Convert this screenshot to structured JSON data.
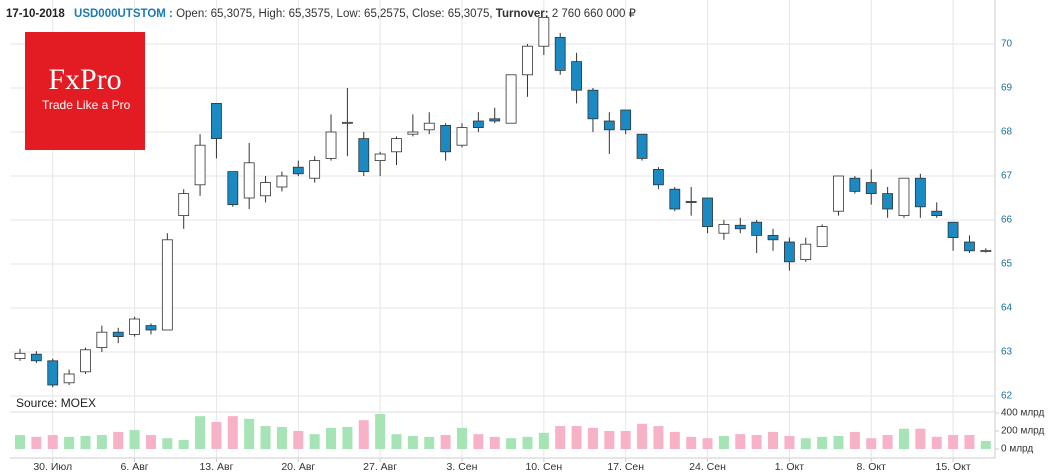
{
  "chart_data": {
    "type": "candlestick",
    "header": {
      "date": "17-10-2018",
      "ticker": "USD000UTSTOM :",
      "ohlc": "Open: 65,3075, High: 65,3575, Low: 65,2575, Close: 65,3075,",
      "turnover_label": "Turnover:",
      "turnover": "2 760 660 000 ₽"
    },
    "logo": {
      "name": "FxPro",
      "tagline": "Trade Like a Pro"
    },
    "source": "Source: MOEX",
    "categories": [
      null,
      null,
      "30. Июл",
      null,
      null,
      null,
      null,
      "6. Авг",
      null,
      null,
      null,
      null,
      "13. Авг",
      null,
      null,
      null,
      null,
      "20. Авг",
      null,
      null,
      null,
      null,
      "27. Авг",
      null,
      null,
      null,
      null,
      "3. Сен",
      null,
      null,
      null,
      null,
      "10. Сен",
      null,
      null,
      null,
      null,
      "17. Сен",
      null,
      null,
      null,
      null,
      "24. Сен",
      null,
      null,
      null,
      null,
      "1. Окт",
      null,
      null,
      null,
      null,
      "8. Окт",
      null,
      null,
      null,
      null,
      "15. Окт",
      null,
      null
    ],
    "open": [
      62.85,
      62.95,
      62.8,
      62.3,
      62.55,
      63.1,
      63.45,
      63.4,
      63.6,
      63.5,
      66.1,
      66.8,
      68.65,
      67.1,
      66.5,
      66.55,
      66.75,
      67.2,
      66.95,
      67.4,
      68.2,
      67.85,
      67.35,
      67.55,
      67.95,
      68.05,
      68.15,
      67.7,
      68.25,
      68.3,
      68.2,
      69.3,
      69.95,
      70.15,
      69.6,
      68.95,
      68.25,
      68.5,
      67.95,
      67.15,
      66.7,
      66.42,
      66.5,
      65.7,
      65.88,
      65.95,
      65.65,
      65.5,
      65.1,
      65.4,
      66.2,
      66.95,
      66.85,
      66.6,
      66.1,
      66.95,
      66.2,
      65.95,
      65.5,
      65.3075
    ],
    "high": [
      63.07,
      63.02,
      62.85,
      62.6,
      63.1,
      63.6,
      63.55,
      63.8,
      63.65,
      65.7,
      66.7,
      67.95,
      68.65,
      67.1,
      67.75,
      67.0,
      67.1,
      67.35,
      67.45,
      68.4,
      69.0,
      68.0,
      67.55,
      67.9,
      68.4,
      68.45,
      68.2,
      68.2,
      68.45,
      68.55,
      69.3,
      70.0,
      70.6,
      70.25,
      69.8,
      69.0,
      68.45,
      68.5,
      67.95,
      67.2,
      66.75,
      66.75,
      66.5,
      66.0,
      66.05,
      66.0,
      65.8,
      65.6,
      65.6,
      65.9,
      67.0,
      67.0,
      67.15,
      66.75,
      66.95,
      67.05,
      66.4,
      65.95,
      65.65,
      65.3575
    ],
    "low": [
      62.8,
      62.75,
      62.2,
      62.25,
      62.5,
      63.0,
      63.2,
      63.35,
      63.4,
      63.5,
      65.8,
      66.55,
      67.4,
      66.3,
      66.25,
      66.4,
      66.65,
      67.0,
      66.85,
      67.35,
      67.45,
      67.0,
      67.0,
      67.25,
      67.9,
      67.95,
      67.35,
      67.65,
      68.0,
      68.2,
      68.2,
      68.8,
      69.75,
      69.3,
      68.65,
      68.0,
      67.5,
      67.95,
      67.35,
      66.7,
      66.2,
      66.1,
      65.7,
      65.55,
      65.7,
      65.25,
      65.3,
      64.85,
      65.05,
      65.4,
      66.1,
      66.6,
      66.35,
      66.05,
      66.05,
      66.05,
      66.05,
      65.3,
      65.25,
      65.2575
    ],
    "close": [
      62.97,
      62.8,
      62.25,
      62.5,
      63.05,
      63.45,
      63.35,
      63.75,
      63.5,
      65.55,
      66.6,
      67.7,
      67.85,
      66.35,
      67.3,
      66.85,
      67.0,
      67.05,
      67.35,
      68.0,
      68.22,
      67.1,
      67.5,
      67.85,
      68.0,
      68.2,
      67.55,
      68.1,
      68.1,
      68.25,
      69.3,
      69.95,
      70.6,
      69.4,
      68.95,
      68.3,
      68.05,
      68.05,
      67.4,
      66.8,
      66.25,
      66.4,
      65.85,
      65.9,
      65.8,
      65.65,
      65.55,
      65.05,
      65.45,
      65.85,
      67.0,
      66.65,
      66.6,
      66.25,
      66.95,
      66.3,
      66.1,
      65.6,
      65.3,
      65.3075
    ],
    "up_color": "#ffffff",
    "down_color": "#1b8ac2",
    "wick_color": "#333333",
    "ylim": [
      62,
      71
    ],
    "yticks": [
      62,
      63,
      64,
      65,
      66,
      67,
      68,
      69,
      70
    ],
    "volume": {
      "values": [
        155,
        135,
        155,
        135,
        145,
        155,
        190,
        210,
        155,
        120,
        100,
        365,
        300,
        365,
        335,
        255,
        245,
        200,
        165,
        235,
        245,
        320,
        390,
        165,
        145,
        135,
        155,
        235,
        165,
        135,
        120,
        135,
        180,
        255,
        255,
        235,
        200,
        200,
        280,
        255,
        190,
        135,
        120,
        145,
        165,
        155,
        190,
        145,
        120,
        135,
        145,
        190,
        120,
        155,
        225,
        225,
        135,
        155,
        155,
        90
      ],
      "up_color": "#a6e3b5",
      "down_color": "#f7b2c7",
      "ylim": [
        0,
        450
      ],
      "yticks": [
        {
          "value": 0,
          "label": "0 млрд"
        },
        {
          "value": 200,
          "label": "200 млрд"
        },
        {
          "value": 400,
          "label": "400 млрд"
        }
      ]
    },
    "grid": true
  }
}
